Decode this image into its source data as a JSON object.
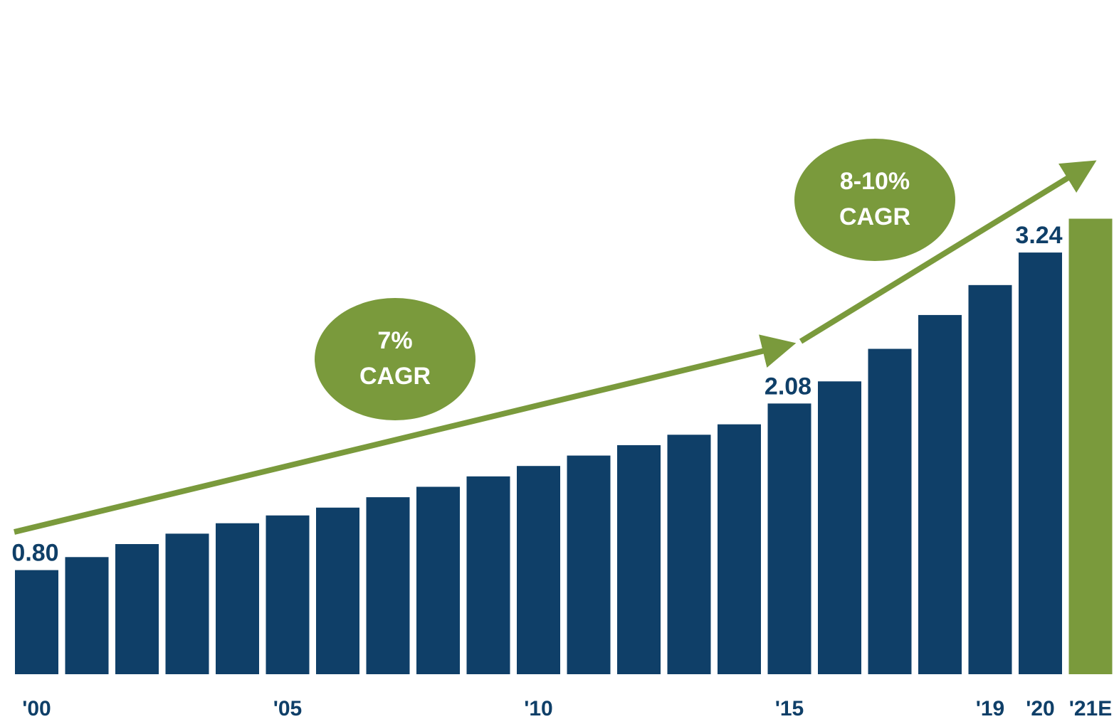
{
  "chart_data": {
    "type": "bar",
    "categories": [
      "'00",
      null,
      null,
      null,
      null,
      "'05",
      null,
      null,
      null,
      null,
      "'10",
      null,
      null,
      null,
      null,
      "'15",
      null,
      null,
      null,
      "'19",
      "'20",
      "'21E"
    ],
    "values": [
      0.8,
      0.9,
      1.0,
      1.08,
      1.16,
      1.22,
      1.28,
      1.36,
      1.44,
      1.52,
      1.6,
      1.68,
      1.76,
      1.84,
      1.92,
      2.08,
      2.25,
      2.5,
      2.76,
      2.99,
      3.24,
      3.5
    ],
    "value_labels": [
      "0.80",
      null,
      null,
      null,
      null,
      null,
      null,
      null,
      null,
      null,
      null,
      null,
      null,
      null,
      null,
      "2.08",
      null,
      null,
      null,
      null,
      "3.24",
      null
    ],
    "colors": [
      "#0f3f68",
      "#0f3f68",
      "#0f3f68",
      "#0f3f68",
      "#0f3f68",
      "#0f3f68",
      "#0f3f68",
      "#0f3f68",
      "#0f3f68",
      "#0f3f68",
      "#0f3f68",
      "#0f3f68",
      "#0f3f68",
      "#0f3f68",
      "#0f3f68",
      "#0f3f68",
      "#0f3f68",
      "#0f3f68",
      "#0f3f68",
      "#0f3f68",
      "#0f3f68",
      "#7a9a3c"
    ],
    "annotations": [
      {
        "lines": [
          "7%",
          "CAGR"
        ]
      },
      {
        "lines": [
          "8-10%",
          "CAGR"
        ]
      }
    ]
  }
}
